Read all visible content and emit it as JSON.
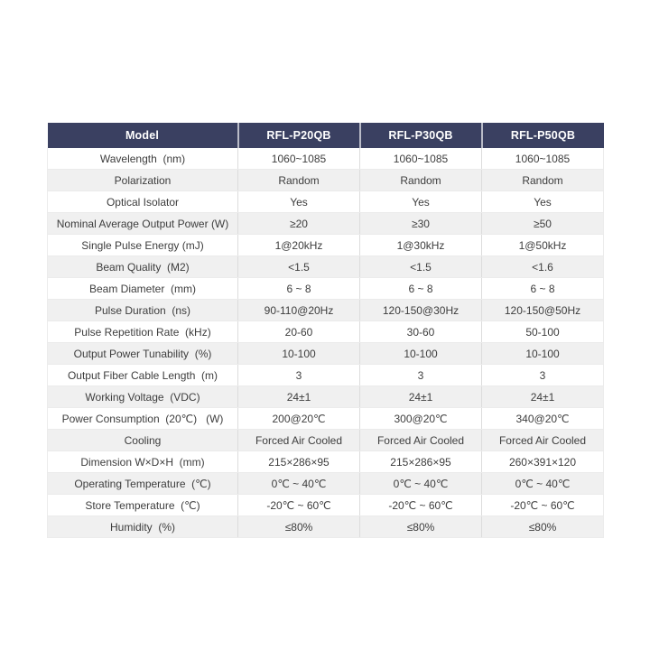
{
  "colors": {
    "page_background": "#ffffff",
    "header_background": "#3a4061",
    "header_text": "#ffffff",
    "row_alternate_background": "#f0f0f0",
    "body_text": "#3d3d3d",
    "grid_line": "#dcdcdc"
  },
  "table": {
    "header": {
      "model_label": "Model",
      "columns": [
        "RFL-P20QB",
        "RFL-P30QB",
        "RFL-P50QB"
      ]
    },
    "rows": [
      {
        "label": "Wavelength  (nm)",
        "v": [
          "1060~1085",
          "1060~1085",
          "1060~1085"
        ]
      },
      {
        "label": "Polarization",
        "v": [
          "Random",
          "Random",
          "Random"
        ]
      },
      {
        "label": "Optical Isolator",
        "v": [
          "Yes",
          "Yes",
          "Yes"
        ]
      },
      {
        "label": "Nominal Average Output Power (W)",
        "v": [
          "≥20",
          "≥30",
          "≥50"
        ]
      },
      {
        "label": "Single Pulse Energy (mJ)",
        "v": [
          "1@20kHz",
          "1@30kHz",
          "1@50kHz"
        ]
      },
      {
        "label": "Beam Quality  (M2)",
        "v": [
          "<1.5",
          "<1.5",
          "<1.6"
        ]
      },
      {
        "label": "Beam Diameter  (mm)",
        "v": [
          "6 ~ 8",
          "6 ~ 8",
          "6 ~ 8"
        ]
      },
      {
        "label": "Pulse Duration  (ns)",
        "v": [
          "90-110@20Hz",
          "120-150@30Hz",
          "120-150@50Hz"
        ]
      },
      {
        "label": "Pulse Repetition Rate  (kHz)",
        "v": [
          "20-60",
          "30-60",
          "50-100"
        ]
      },
      {
        "label": "Output Power Tunability  (%)",
        "v": [
          "10-100",
          "10-100",
          "10-100"
        ]
      },
      {
        "label": "Output Fiber Cable Length  (m)",
        "v": [
          "3",
          "3",
          "3"
        ]
      },
      {
        "label": "Working Voltage  (VDC)",
        "v": [
          "24±1",
          "24±1",
          "24±1"
        ]
      },
      {
        "label": "Power Consumption  (20℃)   (W)",
        "v": [
          "200@20℃",
          "300@20℃",
          "340@20℃"
        ]
      },
      {
        "label": "Cooling",
        "v": [
          "Forced Air Cooled",
          "Forced Air Cooled",
          "Forced Air Cooled"
        ]
      },
      {
        "label": "Dimension W×D×H  (mm)",
        "v": [
          "215×286×95",
          "215×286×95",
          "260×391×120"
        ]
      },
      {
        "label": "Operating Temperature  (℃)",
        "v": [
          "0℃ ~ 40℃",
          "0℃ ~ 40℃",
          "0℃ ~ 40℃"
        ]
      },
      {
        "label": "Store Temperature  (℃)",
        "v": [
          "-20℃ ~ 60℃",
          "-20℃ ~ 60℃",
          "-20℃ ~ 60℃"
        ]
      },
      {
        "label": "Humidity  (%)",
        "v": [
          "≤80%",
          "≤80%",
          "≤80%"
        ]
      }
    ]
  }
}
